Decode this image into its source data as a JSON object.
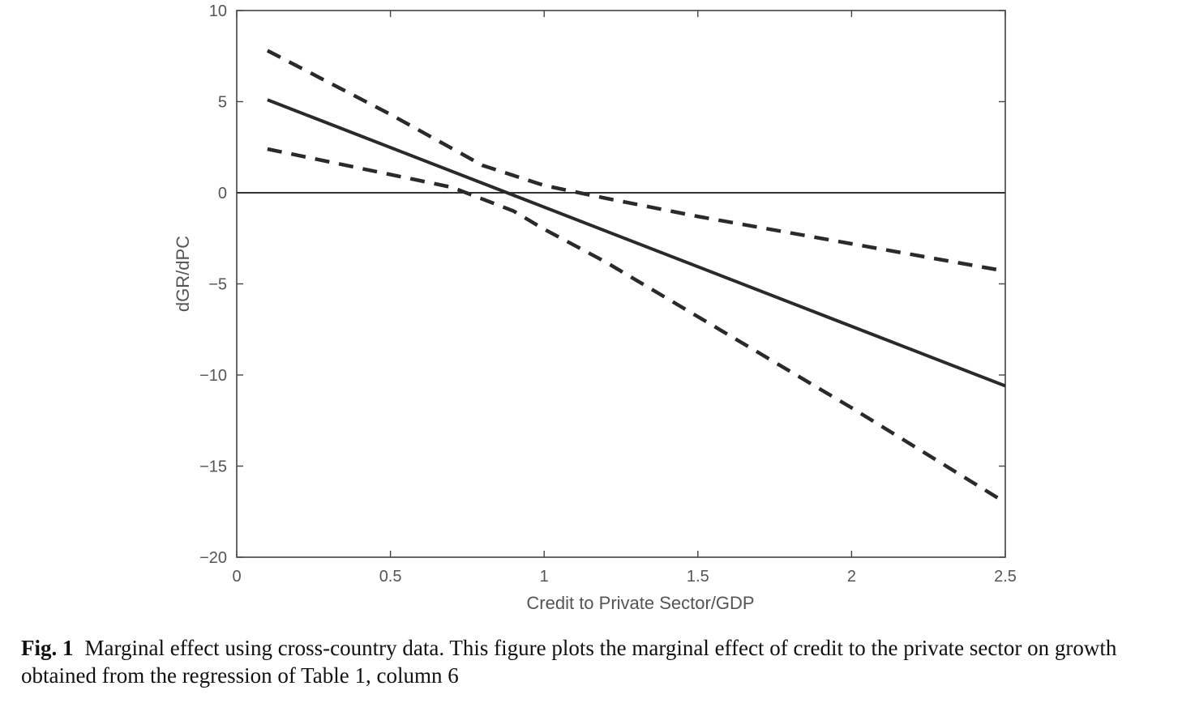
{
  "chart_data": {
    "type": "line",
    "xlabel": "Credit to Private Sector/GDP",
    "ylabel": "dGR/dPC",
    "xlim": [
      0,
      2.5
    ],
    "ylim": [
      -20,
      10
    ],
    "xticks": [
      0,
      0.5,
      1,
      1.5,
      2,
      2.5
    ],
    "xtick_labels": [
      "0",
      "0.5",
      "1",
      "1.5",
      "2",
      "2.5"
    ],
    "yticks": [
      -20,
      -15,
      -10,
      -5,
      0,
      5,
      10
    ],
    "ytick_labels": [
      "−20",
      "−15",
      "−10",
      "−5",
      "0",
      "5",
      "10"
    ],
    "grid": false,
    "reference_line": {
      "y": 0
    },
    "series": [
      {
        "style": "solid",
        "color": "#2a2a2a",
        "x": [
          0.1,
          2.5
        ],
        "y": [
          5.1,
          -10.6
        ]
      },
      {
        "style": "dashed",
        "color": "#2a2a2a",
        "x": [
          0.1,
          0.5,
          0.8,
          1.0,
          1.2,
          1.5,
          2.0,
          2.5
        ],
        "y": [
          7.8,
          4.3,
          1.5,
          0.4,
          -0.3,
          -1.3,
          -2.8,
          -4.3
        ]
      },
      {
        "style": "dashed",
        "color": "#2a2a2a",
        "x": [
          0.1,
          0.5,
          0.7,
          0.9,
          1.0,
          1.2,
          1.5,
          2.0,
          2.5
        ],
        "y": [
          2.4,
          1.0,
          0.3,
          -1.0,
          -2.0,
          -3.8,
          -6.8,
          -11.8,
          -17.0
        ]
      }
    ]
  },
  "caption": {
    "label": "Fig. 1",
    "text": "Marginal effect using cross-country data. This figure plots the marginal effect of credit to the private sector on growth obtained from the regression of Table 1, column 6"
  }
}
